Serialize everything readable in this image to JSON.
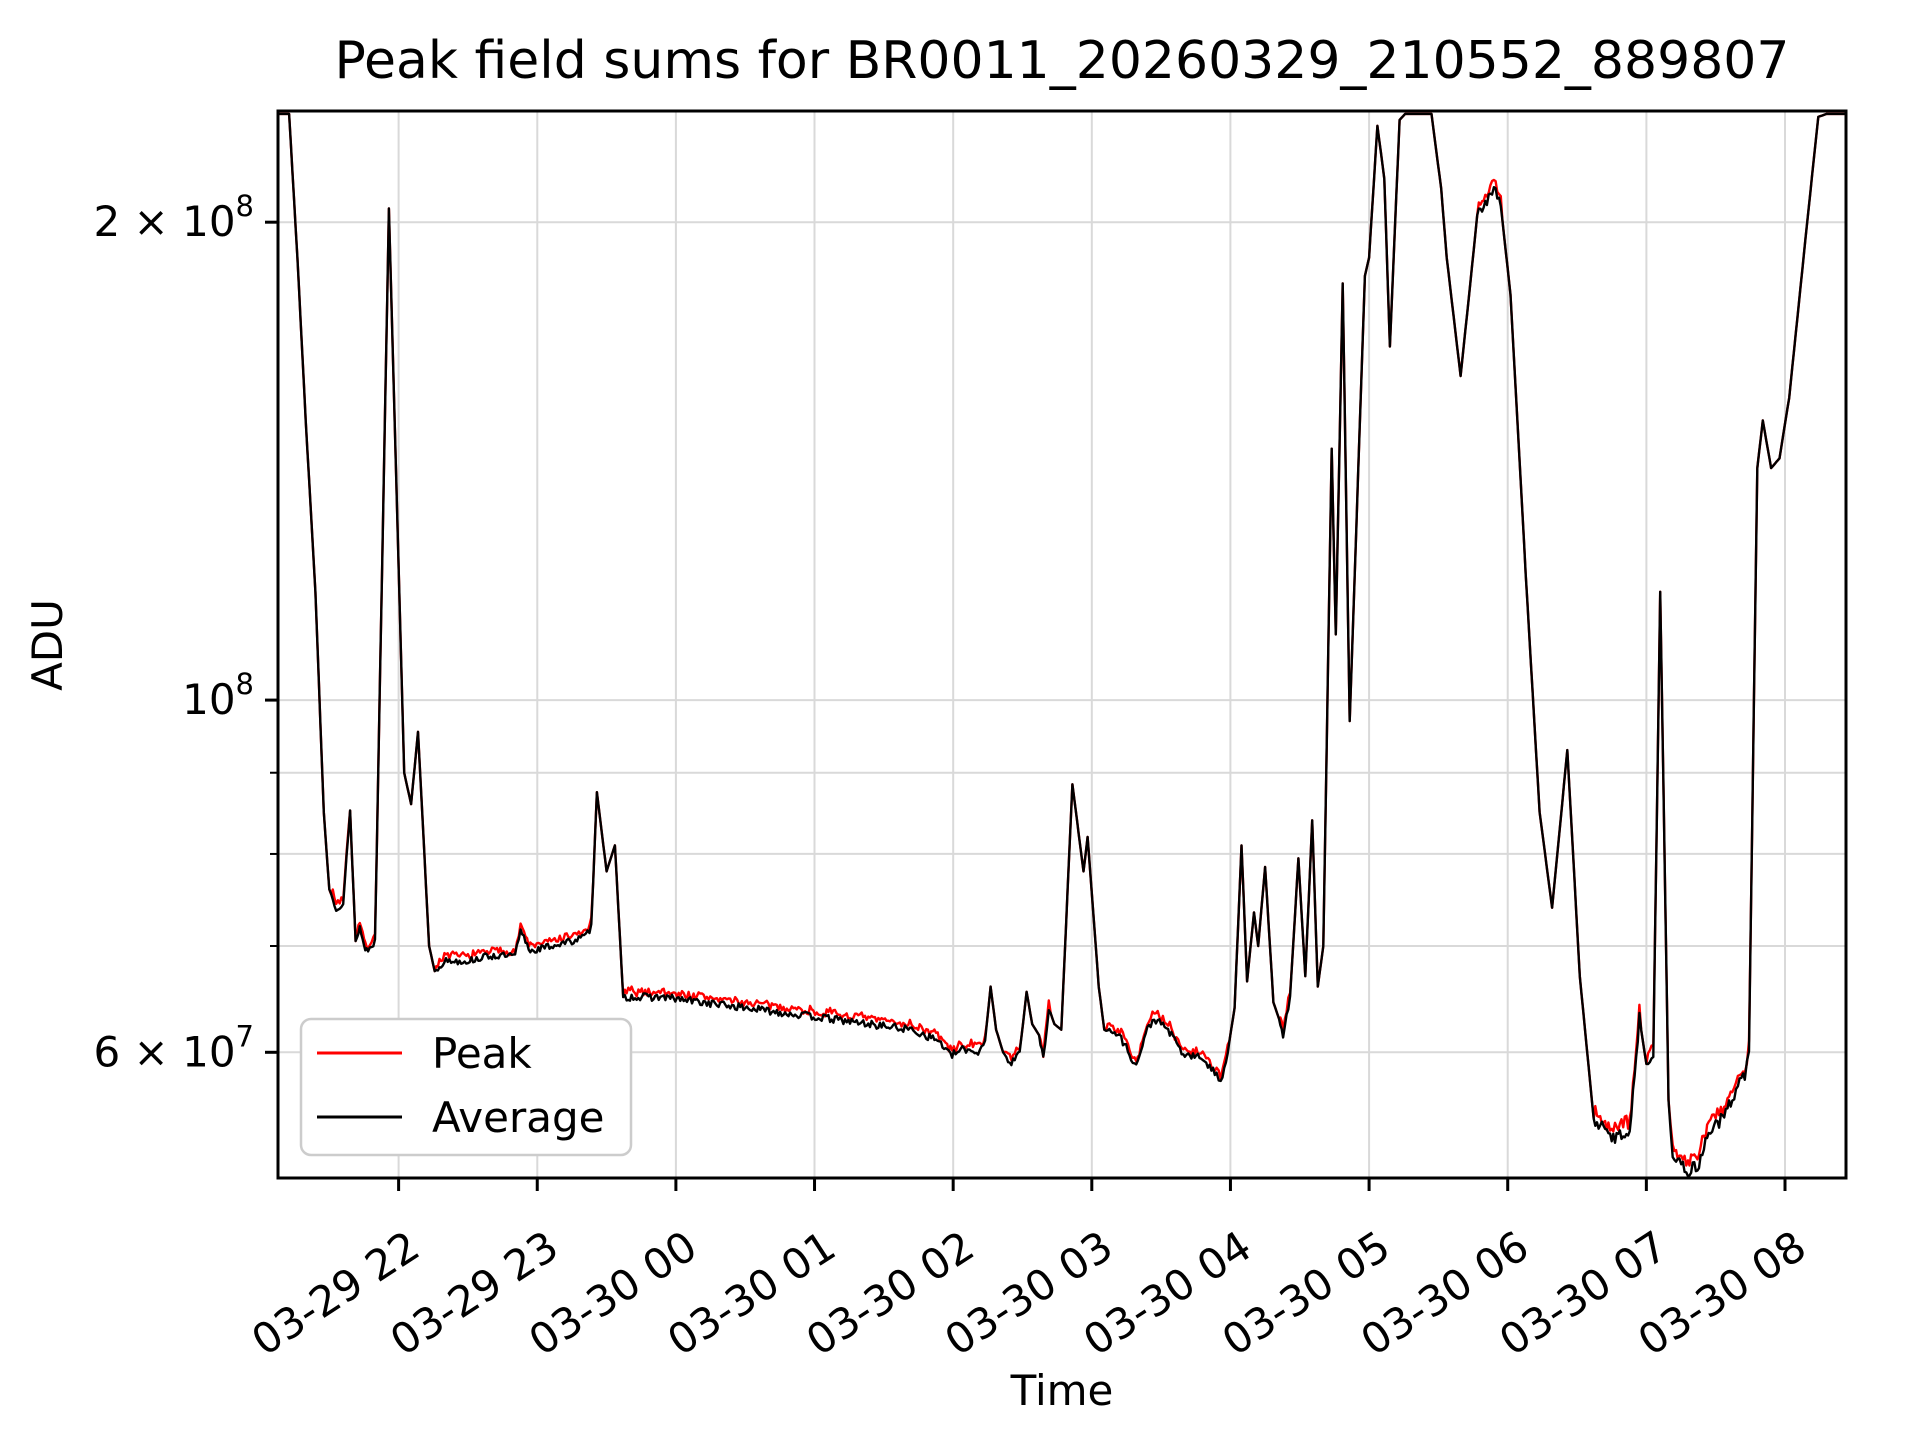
{
  "title": "Peak field sums for BR0011_20260329_210552_889807",
  "chart_data": {
    "type": "line",
    "title": "Peak field sums for BR0011_20260329_210552_889807",
    "xlabel": "Time",
    "ylabel": "ADU",
    "yscale": "log",
    "grid": true,
    "grid_color": "#d9d9d9",
    "background": "#ffffff",
    "ylim_adu": [
      50000000,
      235000000
    ],
    "x_unit": "hours after 2026-03-29 21:00",
    "xlim_hours": [
      0.13,
      11.44
    ],
    "xticks": [
      {
        "h": 1,
        "label": "03-29 22"
      },
      {
        "h": 2,
        "label": "03-29 23"
      },
      {
        "h": 3,
        "label": "03-30 00"
      },
      {
        "h": 4,
        "label": "03-30 01"
      },
      {
        "h": 5,
        "label": "03-30 02"
      },
      {
        "h": 6,
        "label": "03-30 03"
      },
      {
        "h": 7,
        "label": "03-30 04"
      },
      {
        "h": 8,
        "label": "03-30 05"
      },
      {
        "h": 9,
        "label": "03-30 06"
      },
      {
        "h": 10,
        "label": "03-30 07"
      },
      {
        "h": 11,
        "label": "03-30 08"
      }
    ],
    "yticks_labeled": [
      {
        "v_millions": 200,
        "mantissa": "2 × 10",
        "exp": "8"
      },
      {
        "v_millions": 100,
        "mantissa": "10",
        "exp": "8"
      },
      {
        "v_millions": 60,
        "mantissa": "6 × 10",
        "exp": "7"
      }
    ],
    "yticks_minor_millions": [
      70,
      80,
      90
    ],
    "ygrid_millions": [
      60,
      70,
      80,
      90,
      100,
      200
    ],
    "legend": {
      "entries": [
        {
          "label": "Peak",
          "color": "#ff0000"
        },
        {
          "label": "Average",
          "color": "#000000"
        }
      ]
    },
    "series": [
      {
        "name": "Peak",
        "color": "#ff0000",
        "note": "sits ~0.5–1.5% above Average in noisy stretches, otherwise overlapping"
      },
      {
        "name": "Average",
        "color": "#000000",
        "note": "base profile, drawn on top"
      }
    ],
    "value_unit": "ADU, stored in millions (1e6)",
    "point_format": "[hours_after_2026-03-29_21:00, adu_millions, noise_band_pct]",
    "profile_points": [
      [
        0.13,
        234,
        0
      ],
      [
        0.21,
        234,
        0
      ],
      [
        0.27,
        190,
        0
      ],
      [
        0.33,
        150,
        0
      ],
      [
        0.4,
        117,
        0
      ],
      [
        0.46,
        85,
        0
      ],
      [
        0.5,
        76,
        0.5
      ],
      [
        0.55,
        74,
        0.5
      ],
      [
        0.6,
        74.5,
        0.5
      ],
      [
        0.65,
        85,
        0
      ],
      [
        0.69,
        70.5,
        0.5
      ],
      [
        0.72,
        72,
        0.5
      ],
      [
        0.75,
        70,
        0.5
      ],
      [
        0.78,
        69.5,
        0.5
      ],
      [
        0.83,
        70.5,
        0
      ],
      [
        0.93,
        204,
        0
      ],
      [
        1.04,
        90,
        0
      ],
      [
        1.09,
        86,
        0
      ],
      [
        1.14,
        95.5,
        0
      ],
      [
        1.22,
        70,
        0
      ],
      [
        1.26,
        67.5,
        0.5
      ],
      [
        1.33,
        68.5,
        0.5
      ],
      [
        1.5,
        68.5,
        0.5
      ],
      [
        1.65,
        69,
        0.5
      ],
      [
        1.84,
        69,
        0.5
      ],
      [
        1.88,
        71.5,
        0.5
      ],
      [
        1.95,
        69.5,
        0.5
      ],
      [
        2.1,
        70,
        0.5
      ],
      [
        2.25,
        70.5,
        0.5
      ],
      [
        2.35,
        71,
        0.5
      ],
      [
        2.39,
        72,
        0
      ],
      [
        2.43,
        87.5,
        0
      ],
      [
        2.5,
        78,
        0
      ],
      [
        2.56,
        81,
        0
      ],
      [
        2.62,
        65,
        0.55
      ],
      [
        2.9,
        65,
        0.55
      ],
      [
        3.2,
        64.5,
        0.55
      ],
      [
        3.5,
        64,
        0.55
      ],
      [
        3.8,
        63.5,
        0.55
      ],
      [
        4.1,
        63,
        0.55
      ],
      [
        4.4,
        62.5,
        0.55
      ],
      [
        4.7,
        62,
        0.55
      ],
      [
        4.9,
        61,
        0.55
      ],
      [
        4.98,
        59.7,
        0.55
      ],
      [
        5.08,
        60.3,
        0.55
      ],
      [
        5.18,
        60,
        0.5
      ],
      [
        5.23,
        61,
        0
      ],
      [
        5.27,
        66,
        0
      ],
      [
        5.31,
        62,
        0
      ],
      [
        5.36,
        60,
        0.5
      ],
      [
        5.42,
        59,
        0.5
      ],
      [
        5.48,
        60,
        0
      ],
      [
        5.53,
        65.5,
        0
      ],
      [
        5.57,
        62.5,
        0
      ],
      [
        5.62,
        61.5,
        0.5
      ],
      [
        5.65,
        59.5,
        0.5
      ],
      [
        5.69,
        64,
        0
      ],
      [
        5.73,
        62.5,
        0
      ],
      [
        5.78,
        62,
        0
      ],
      [
        5.86,
        88.5,
        0
      ],
      [
        5.94,
        78,
        0
      ],
      [
        5.97,
        82,
        0
      ],
      [
        6.05,
        66,
        0
      ],
      [
        6.09,
        62,
        0.55
      ],
      [
        6.2,
        61.5,
        0.55
      ],
      [
        6.32,
        58.8,
        0.55
      ],
      [
        6.4,
        62,
        0.55
      ],
      [
        6.45,
        63,
        0.55
      ],
      [
        6.55,
        62,
        0.55
      ],
      [
        6.66,
        59.8,
        0.55
      ],
      [
        6.8,
        59.5,
        0.55
      ],
      [
        6.9,
        58,
        0.55
      ],
      [
        6.93,
        57.5,
        0.5
      ],
      [
        6.98,
        60,
        0
      ],
      [
        7.03,
        64,
        0
      ],
      [
        7.08,
        81,
        0
      ],
      [
        7.12,
        66.5,
        0
      ],
      [
        7.17,
        73.5,
        0
      ],
      [
        7.2,
        70,
        0
      ],
      [
        7.25,
        78.5,
        0
      ],
      [
        7.31,
        64.5,
        0
      ],
      [
        7.35,
        63,
        0.5
      ],
      [
        7.38,
        61.5,
        0.5
      ],
      [
        7.43,
        65,
        0
      ],
      [
        7.49,
        79.5,
        0
      ],
      [
        7.54,
        67,
        0
      ],
      [
        7.59,
        84,
        0
      ],
      [
        7.63,
        66,
        0
      ],
      [
        7.67,
        70,
        0
      ],
      [
        7.73,
        144,
        0
      ],
      [
        7.76,
        110,
        0
      ],
      [
        7.81,
        183,
        0
      ],
      [
        7.86,
        97,
        0
      ],
      [
        7.97,
        185,
        0
      ],
      [
        8.0,
        190,
        0
      ],
      [
        8.06,
        230,
        0
      ],
      [
        8.11,
        213,
        0
      ],
      [
        8.15,
        167,
        0
      ],
      [
        8.22,
        232,
        0
      ],
      [
        8.26,
        234,
        0
      ],
      [
        8.45,
        234,
        0
      ],
      [
        8.52,
        210,
        0
      ],
      [
        8.56,
        190,
        0
      ],
      [
        8.66,
        160,
        0
      ],
      [
        8.73,
        183,
        0
      ],
      [
        8.78,
        202,
        0.7
      ],
      [
        8.85,
        206,
        0.7
      ],
      [
        8.9,
        210,
        0.7
      ],
      [
        8.95,
        205,
        0
      ],
      [
        9.02,
        180,
        0
      ],
      [
        9.13,
        120,
        0
      ],
      [
        9.23,
        85,
        0
      ],
      [
        9.32,
        74,
        0
      ],
      [
        9.43,
        93,
        0
      ],
      [
        9.52,
        67,
        0
      ],
      [
        9.62,
        54.5,
        0.9
      ],
      [
        9.75,
        53,
        0.9
      ],
      [
        9.88,
        53.5,
        0.9
      ],
      [
        9.95,
        63,
        0
      ],
      [
        10.0,
        59,
        0.7
      ],
      [
        10.05,
        60,
        0
      ],
      [
        10.1,
        117,
        0
      ],
      [
        10.16,
        56,
        0.9
      ],
      [
        10.19,
        51.5,
        0.9
      ],
      [
        10.3,
        50.5,
        0.9
      ],
      [
        10.38,
        51,
        0.9
      ],
      [
        10.45,
        53.5,
        0.9
      ],
      [
        10.55,
        54.5,
        0.9
      ],
      [
        10.62,
        56,
        0.9
      ],
      [
        10.66,
        57.5,
        0.7
      ],
      [
        10.71,
        58,
        0.7
      ],
      [
        10.74,
        60,
        0
      ],
      [
        10.8,
        140,
        0
      ],
      [
        10.84,
        150,
        0
      ],
      [
        10.9,
        140,
        0
      ],
      [
        10.96,
        142,
        0
      ],
      [
        11.03,
        155,
        0
      ],
      [
        11.16,
        200,
        0
      ],
      [
        11.24,
        233,
        0
      ],
      [
        11.3,
        234,
        0
      ],
      [
        11.44,
        234,
        0
      ]
    ]
  },
  "colors": {
    "peak_line": "#ff0000",
    "average_line": "#000000",
    "grid": "#d9d9d9",
    "spine": "#000000",
    "legend_border": "#cccccc",
    "background": "#ffffff"
  }
}
